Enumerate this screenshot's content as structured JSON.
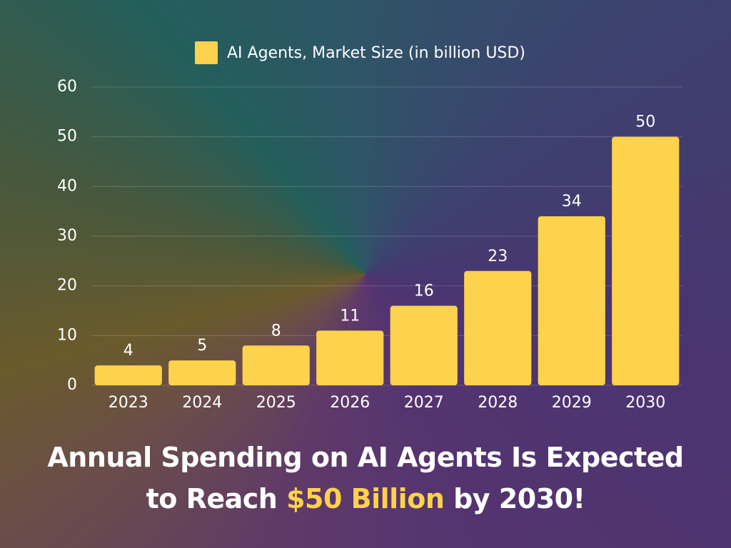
{
  "chart_data": {
    "type": "bar",
    "categories": [
      "2023",
      "2024",
      "2025",
      "2026",
      "2027",
      "2028",
      "2029",
      "2030"
    ],
    "series": [
      {
        "name": "AI Agents, Market Size (in billion USD)",
        "color": "#fdd24c",
        "values": [
          4,
          5,
          8,
          11,
          16,
          23,
          34,
          50
        ]
      }
    ],
    "ylim": [
      0,
      60
    ],
    "yticks": [
      0,
      10,
      20,
      30,
      40,
      50,
      60
    ],
    "grid": true,
    "legend": "top",
    "title": {
      "line1": "Annual Spending on AI Agents Is Expected",
      "line2_start": "to Reach",
      "highlight": "$50 Billion",
      "line2_end": "by 2030!"
    }
  }
}
